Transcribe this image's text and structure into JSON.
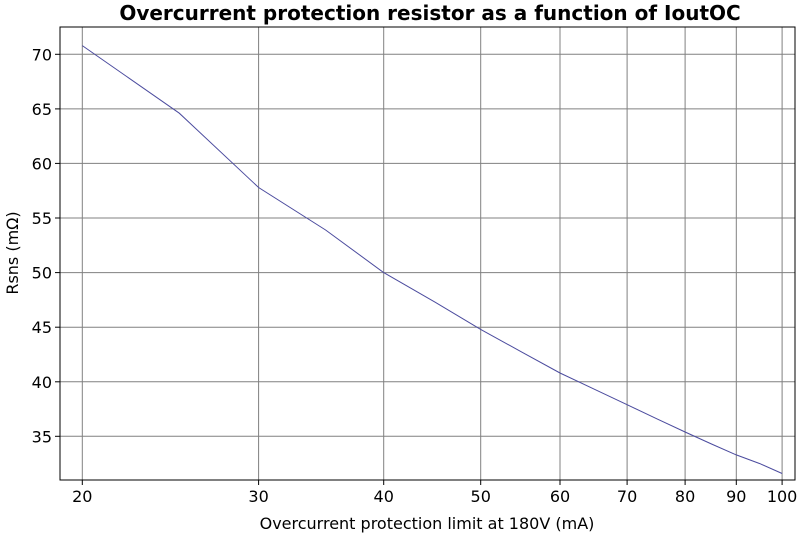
{
  "chart_data": {
    "type": "line",
    "title": "Overcurrent protection resistor as a function of IoutOC",
    "xlabel": "Overcurrent protection limit at 180V (mA)",
    "ylabel": "Rsns (mΩ)",
    "xscale": "log",
    "xlim": [
      19,
      103
    ],
    "ylim": [
      31,
      72.5
    ],
    "xticks": [
      20,
      30,
      40,
      50,
      60,
      70,
      80,
      90,
      100
    ],
    "yticks": [
      35,
      40,
      45,
      50,
      55,
      60,
      65,
      70
    ],
    "grid": true,
    "line_color": "#4b4b9e",
    "series": [
      {
        "x": [
          20,
          25,
          30,
          35,
          40,
          45,
          50,
          55,
          60,
          65,
          70,
          75,
          80,
          85,
          90,
          95,
          100
        ],
        "y": [
          70.8,
          64.6,
          57.8,
          53.9,
          50.0,
          47.3,
          44.8,
          42.7,
          40.8,
          39.3,
          37.9,
          36.6,
          35.4,
          34.3,
          33.3,
          32.5,
          31.6
        ]
      }
    ]
  }
}
